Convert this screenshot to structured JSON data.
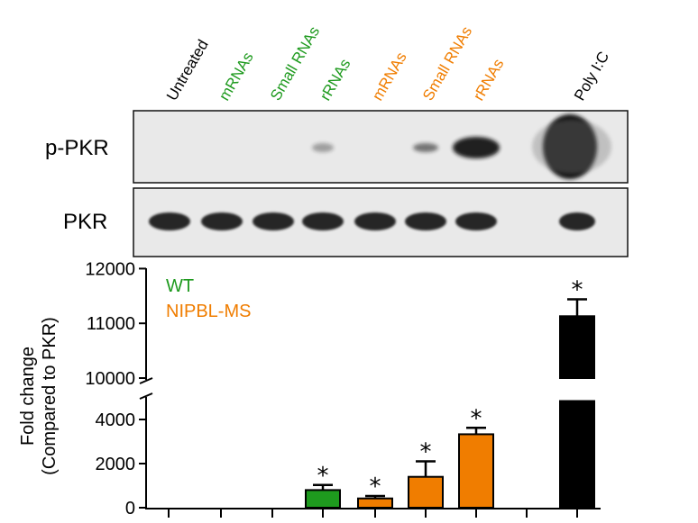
{
  "lanes": [
    {
      "label": "Untreated",
      "color": "#000000"
    },
    {
      "label": "mRNAs",
      "color": "#1e9a1e"
    },
    {
      "label": "Small RNAs",
      "color": "#1e9a1e"
    },
    {
      "label": "rRNAs",
      "color": "#1e9a1e"
    },
    {
      "label": "mRNAs",
      "color": "#f07d00"
    },
    {
      "label": "Small RNAs",
      "color": "#f07d00"
    },
    {
      "label": "rRNAs",
      "color": "#f07d00"
    },
    {
      "label": "Poly I:C",
      "color": "#000000"
    }
  ],
  "blots": {
    "ppkr_label": "p-PKR",
    "pkr_label": "PKR"
  },
  "chart_data": {
    "type": "bar",
    "ylabel": [
      "Fold change",
      "(Compared to PKR)"
    ],
    "y_break": true,
    "y_lower_range": [
      0,
      5000
    ],
    "y_upper_range": [
      10000,
      12000
    ],
    "y_lower_ticks": [
      "0",
      "2000",
      "4000"
    ],
    "y_upper_ticks": [
      "10000",
      "11000",
      "12000"
    ],
    "legend": [
      {
        "label": "WT",
        "color": "#1e9a1e"
      },
      {
        "label": "NIPBL-MS",
        "color": "#f07d00"
      }
    ],
    "bars": [
      {
        "lane": 0,
        "value": 0,
        "error": 0,
        "color": "#1e9a1e",
        "sig": ""
      },
      {
        "lane": 1,
        "value": 0,
        "error": 0,
        "color": "#1e9a1e",
        "sig": ""
      },
      {
        "lane": 2,
        "value": 0,
        "error": 0,
        "color": "#1e9a1e",
        "sig": ""
      },
      {
        "lane": 3,
        "value": 800,
        "error": 230,
        "color": "#1e9a1e",
        "sig": "*"
      },
      {
        "lane": 4,
        "value": 420,
        "error": 110,
        "color": "#f07d00",
        "sig": "*"
      },
      {
        "lane": 5,
        "value": 1400,
        "error": 700,
        "color": "#f07d00",
        "sig": "*"
      },
      {
        "lane": 6,
        "value": 3330,
        "error": 290,
        "color": "#f07d00",
        "sig": "*"
      },
      {
        "lane": 7,
        "value": 11130,
        "error": 310,
        "color": "#000000",
        "sig": "*"
      }
    ]
  }
}
